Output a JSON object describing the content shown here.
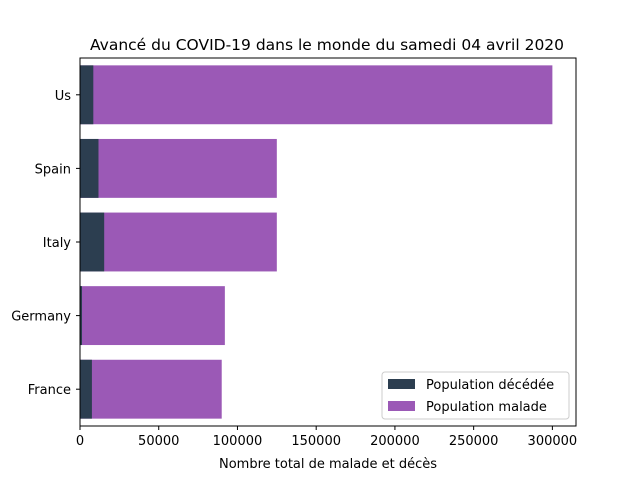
{
  "chart_data": {
    "type": "bar",
    "orientation": "horizontal",
    "stacked": false,
    "overlay": true,
    "title": "Avancé du COVID-19 dans le monde du samedi 04 avril 2020",
    "xlabel": "Nombre total de malade et décès",
    "ylabel": "",
    "categories": [
      "France",
      "Germany",
      "Italy",
      "Spain",
      "Us"
    ],
    "xlim": [
      0,
      315000
    ],
    "xticks": [
      0,
      50000,
      100000,
      150000,
      200000,
      250000,
      300000
    ],
    "xtick_labels": [
      "0",
      "50000",
      "100000",
      "150000",
      "200000",
      "250000",
      "300000"
    ],
    "grid": false,
    "legend_position": "bottom-right",
    "series": [
      {
        "name": "Population malade",
        "color": "#9b59b6",
        "values": [
          90000,
          92000,
          125000,
          125000,
          300000
        ]
      },
      {
        "name": "Population décédée",
        "color": "#2c3e50",
        "values": [
          7560,
          1275,
          15362,
          11744,
          8454
        ]
      }
    ]
  }
}
